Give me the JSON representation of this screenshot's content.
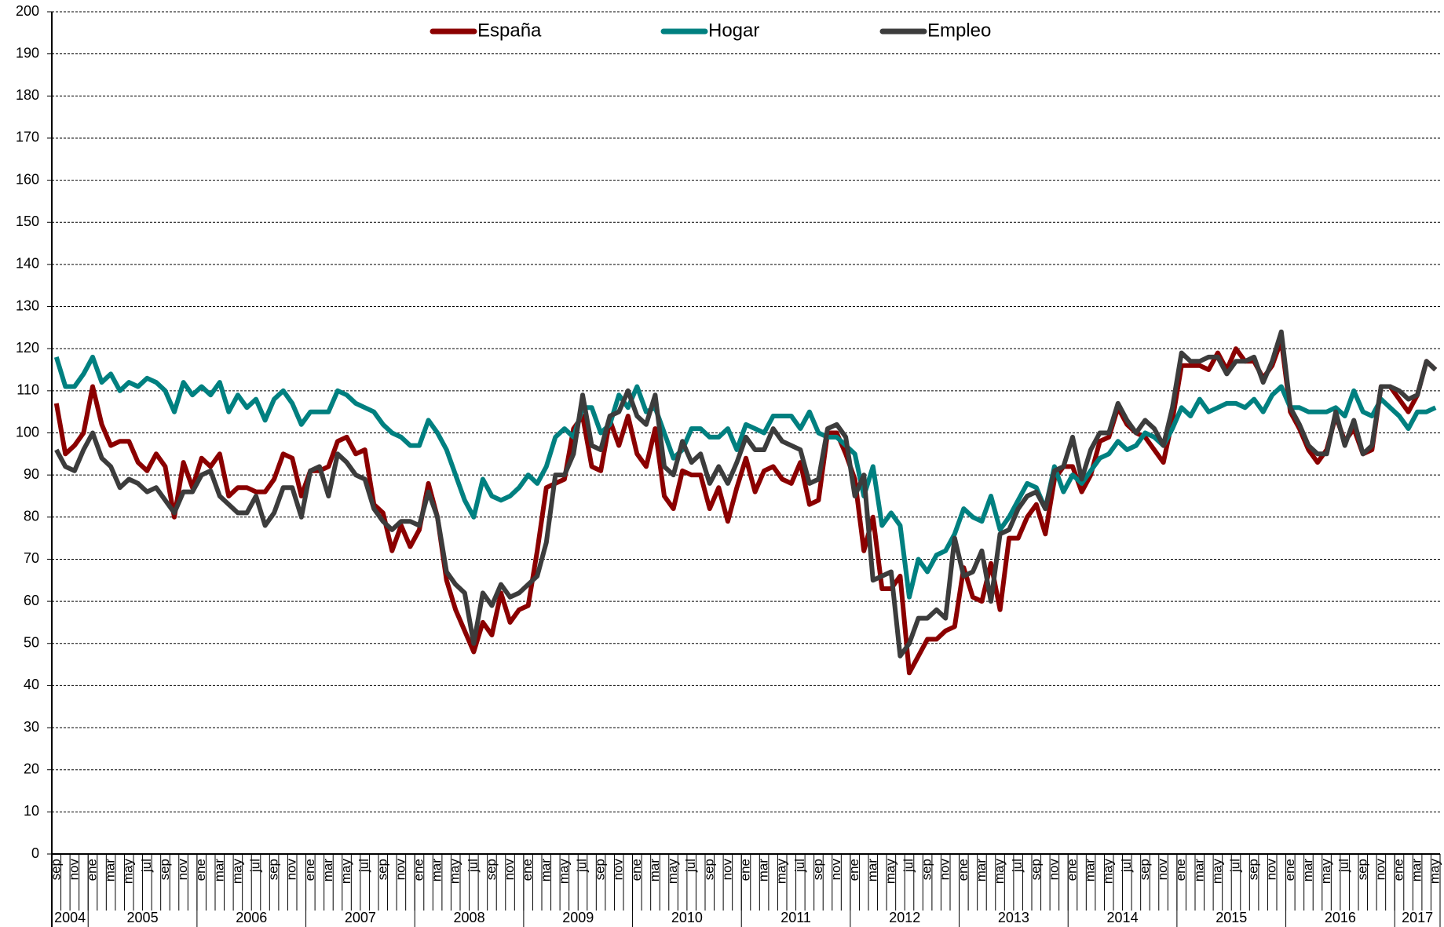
{
  "chart_data": {
    "type": "line",
    "categories": [
      "sep",
      null,
      "nov",
      null,
      "ene",
      null,
      "mar",
      null,
      "may",
      null,
      "jul",
      null,
      "sep",
      null,
      "nov",
      null,
      "ene",
      null,
      "mar",
      null,
      "may",
      null,
      "jul",
      null,
      "sep",
      null,
      "nov",
      null,
      "ene",
      null,
      "mar",
      null,
      "may",
      null,
      "jul",
      null,
      "sep",
      null,
      "nov",
      null,
      "ene",
      null,
      "mar",
      null,
      "may",
      null,
      "jul",
      null,
      "sep",
      null,
      "nov",
      null,
      "ene",
      null,
      "mar",
      null,
      "may",
      null,
      "jul",
      null,
      "sep",
      null,
      "nov",
      null,
      "ene",
      null,
      "mar",
      null,
      "may",
      null,
      "jul",
      null,
      "sep",
      null,
      "nov",
      null,
      "ene",
      null,
      "mar",
      null,
      "may",
      null,
      "jul",
      null,
      "sep",
      null,
      "nov",
      null,
      "ene",
      null,
      "mar",
      null,
      "may",
      null,
      "jul",
      null,
      "sep",
      null,
      "nov",
      null,
      "ene",
      null,
      "mar",
      null,
      "may",
      null,
      "jul",
      null,
      "sep",
      null,
      "nov",
      null,
      "ene",
      null,
      "mar",
      null,
      "may",
      null,
      "jul",
      null,
      "sep",
      null,
      "nov",
      null,
      "ene",
      null,
      "mar",
      null,
      "may",
      null,
      "jul",
      null,
      "sep",
      null,
      "nov",
      null,
      "ene",
      null,
      "mar",
      null,
      "may",
      null,
      "jul",
      null,
      "sep",
      null,
      "nov",
      null,
      "ene",
      null,
      "mar",
      null,
      "may"
    ],
    "year_groups": [
      "2004",
      "2005",
      "2006",
      "2007",
      "2008",
      "2009",
      "2010",
      "2011",
      "2012",
      "2013",
      "2014",
      "2015",
      "2016",
      "2017"
    ],
    "series": [
      {
        "name": "España",
        "color": "#8b0000",
        "values": [
          107,
          95,
          97,
          100,
          111,
          102,
          97,
          98,
          98,
          93,
          91,
          95,
          92,
          80,
          93,
          87,
          94,
          92,
          95,
          85,
          87,
          87,
          86,
          86,
          89,
          95,
          94,
          85,
          91,
          91,
          92,
          98,
          99,
          95,
          96,
          83,
          81,
          72,
          78,
          73,
          77,
          88,
          80,
          65,
          58,
          53,
          48,
          55,
          52,
          62,
          55,
          58,
          59,
          72,
          87,
          88,
          89,
          101,
          104,
          92,
          91,
          103,
          97,
          104,
          95,
          92,
          101,
          85,
          82,
          91,
          90,
          90,
          82,
          87,
          79,
          87,
          94,
          86,
          91,
          92,
          89,
          88,
          93,
          83,
          84,
          100,
          100,
          95,
          89,
          72,
          80,
          63,
          63,
          66,
          43,
          47,
          51,
          51,
          53,
          54,
          68,
          61,
          60,
          69,
          58,
          75,
          75,
          80,
          83,
          76,
          89,
          92,
          92,
          86,
          90,
          98,
          99,
          106,
          102,
          100,
          99,
          96,
          93,
          103,
          116,
          116,
          116,
          115,
          119,
          115,
          120,
          117,
          117,
          113,
          116,
          122,
          105,
          101,
          96,
          93,
          96,
          104,
          98,
          101,
          95,
          96,
          111,
          111,
          108,
          105,
          109,
          117,
          115
        ]
      },
      {
        "name": "Hogar",
        "color": "#008080",
        "values": [
          118,
          111,
          111,
          114,
          118,
          112,
          114,
          110,
          112,
          111,
          113,
          112,
          110,
          105,
          112,
          109,
          111,
          109,
          112,
          105,
          109,
          106,
          108,
          103,
          108,
          110,
          107,
          102,
          105,
          105,
          105,
          110,
          109,
          107,
          106,
          105,
          102,
          100,
          99,
          97,
          97,
          103,
          100,
          96,
          90,
          84,
          80,
          89,
          85,
          84,
          85,
          87,
          90,
          88,
          92,
          99,
          101,
          99,
          106,
          106,
          100,
          102,
          109,
          106,
          111,
          105,
          106,
          100,
          94,
          96,
          101,
          101,
          99,
          99,
          101,
          96,
          102,
          101,
          100,
          104,
          104,
          104,
          101,
          105,
          100,
          99,
          99,
          97,
          95,
          85,
          92,
          78,
          81,
          78,
          61,
          70,
          67,
          71,
          72,
          76,
          82,
          80,
          79,
          85,
          77,
          80,
          84,
          88,
          87,
          82,
          92,
          86,
          90,
          88,
          91,
          94,
          95,
          98,
          96,
          97,
          100,
          99,
          97,
          101,
          106,
          104,
          108,
          105,
          106,
          107,
          107,
          106,
          108,
          105,
          109,
          111,
          106,
          106,
          105,
          105,
          105,
          106,
          104,
          110,
          105,
          104,
          108,
          106,
          104,
          101,
          105,
          105,
          106
        ]
      },
      {
        "name": "Empleo",
        "color": "#3c3c3c",
        "values": [
          96,
          92,
          91,
          96,
          100,
          94,
          92,
          87,
          89,
          88,
          86,
          87,
          84,
          81,
          86,
          86,
          90,
          91,
          85,
          83,
          81,
          81,
          85,
          78,
          81,
          87,
          87,
          80,
          91,
          92,
          85,
          95,
          93,
          90,
          89,
          82,
          79,
          77,
          79,
          79,
          78,
          86,
          80,
          67,
          64,
          62,
          50,
          62,
          59,
          64,
          61,
          62,
          64,
          66,
          74,
          90,
          90,
          95,
          109,
          97,
          96,
          104,
          105,
          110,
          104,
          102,
          109,
          92,
          90,
          98,
          93,
          95,
          88,
          92,
          88,
          93,
          99,
          96,
          96,
          101,
          98,
          97,
          96,
          88,
          89,
          101,
          102,
          99,
          85,
          90,
          65,
          66,
          67,
          47,
          50,
          56,
          56,
          58,
          56,
          75,
          66,
          67,
          72,
          60,
          76,
          77,
          82,
          85,
          86,
          82,
          91,
          92,
          99,
          89,
          96,
          100,
          100,
          107,
          103,
          100,
          103,
          101,
          97,
          106,
          119,
          117,
          117,
          118,
          118,
          114,
          117,
          117,
          118,
          112,
          117,
          124,
          106,
          102,
          97,
          95,
          95,
          105,
          97,
          103,
          95,
          97,
          111,
          111,
          110,
          108,
          109,
          117,
          115
        ]
      }
    ],
    "ylim": [
      0,
      200
    ],
    "yticks": [
      0,
      10,
      20,
      30,
      40,
      50,
      60,
      70,
      80,
      90,
      100,
      110,
      120,
      130,
      140,
      150,
      160,
      170,
      180,
      190,
      200
    ],
    "grid": true,
    "legend": "top"
  }
}
